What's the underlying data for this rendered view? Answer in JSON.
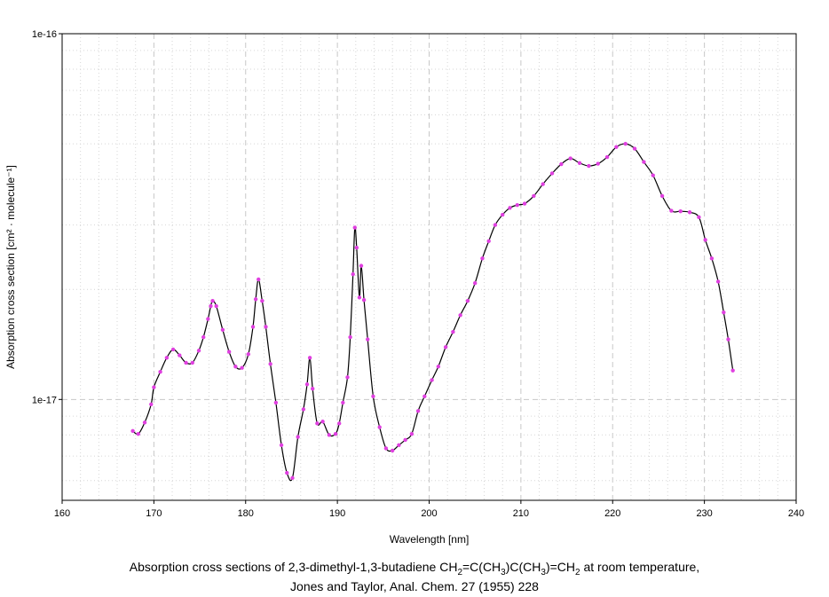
{
  "chart_data": {
    "type": "line",
    "xlabel": "Wavelength [nm]",
    "ylabel": "Absorption cross section [cm² · molecule⁻¹]",
    "xlim": [
      160,
      240
    ],
    "ylim": [
      5.3e-18,
      1e-16
    ],
    "yscale": "log",
    "grid": true,
    "xticks": [
      "160",
      "170",
      "180",
      "190",
      "200",
      "210",
      "220",
      "230",
      "240"
    ],
    "yticks": [
      "1e-16",
      "1e-17"
    ],
    "marker_color": "#e040e0",
    "line_color": "#000000",
    "series": [
      {
        "x": [
          167.7,
          168.3,
          169.0,
          169.7,
          170.0,
          170.7,
          171.4,
          172.1,
          172.8,
          173.5,
          174.2,
          174.9,
          175.4,
          175.9,
          176.2,
          176.4,
          176.8,
          177.5,
          178.2,
          178.9,
          179.6,
          180.3,
          180.8,
          181.1,
          181.4,
          181.8,
          182.2,
          182.7,
          183.3,
          183.9,
          184.5,
          185.1,
          185.7,
          186.3,
          186.7,
          187.0,
          187.3,
          187.8,
          188.4,
          189.1,
          189.8,
          190.2,
          190.6,
          191.1,
          191.4,
          191.7,
          191.9,
          192.1,
          192.4,
          192.6,
          192.9,
          193.3,
          193.9,
          194.6,
          195.3,
          196.0,
          196.7,
          197.4,
          198.1,
          198.8,
          199.5,
          200.3,
          201.0,
          201.8,
          202.6,
          203.4,
          204.2,
          205.0,
          205.8,
          206.5,
          207.2,
          208.0,
          208.8,
          209.6,
          210.4,
          211.4,
          212.4,
          213.4,
          214.4,
          215.4,
          216.4,
          217.4,
          218.4,
          219.4,
          220.4,
          221.4,
          222.4,
          223.4,
          224.4,
          225.4,
          226.4,
          227.4,
          228.4,
          229.4,
          230.1,
          230.8,
          231.5,
          232.1,
          232.6,
          233.1
        ],
        "y": [
          8.2e-18,
          8.05e-18,
          8.65e-18,
          9.7e-18,
          1.08e-17,
          1.19e-17,
          1.3e-17,
          1.37e-17,
          1.32e-17,
          1.26e-17,
          1.26e-17,
          1.36e-17,
          1.48e-17,
          1.66e-17,
          1.8e-17,
          1.86e-17,
          1.8e-17,
          1.55e-17,
          1.35e-17,
          1.23e-17,
          1.22e-17,
          1.33e-17,
          1.58e-17,
          1.88e-17,
          2.13e-17,
          1.86e-17,
          1.58e-17,
          1.25e-17,
          9.8e-18,
          7.5e-18,
          6.3e-18,
          6.1e-18,
          7.9e-18,
          9.4e-18,
          1.1e-17,
          1.3e-17,
          1.07e-17,
          8.6e-18,
          8.7e-18,
          8e-18,
          8.05e-18,
          8.6e-18,
          9.8e-18,
          1.15e-17,
          1.48e-17,
          2.2e-17,
          2.95e-17,
          2.6e-17,
          1.9e-17,
          2.32e-17,
          1.87e-17,
          1.46e-17,
          1.02e-17,
          8.4e-18,
          7.35e-18,
          7.25e-18,
          7.5e-18,
          7.75e-18,
          8.05e-18,
          9.3e-18,
          1.02e-17,
          1.13e-17,
          1.23e-17,
          1.39e-17,
          1.53e-17,
          1.7e-17,
          1.86e-17,
          2.08e-17,
          2.43e-17,
          2.71e-17,
          3e-17,
          3.2e-17,
          3.34e-17,
          3.4e-17,
          3.43e-17,
          3.6e-17,
          3.88e-17,
          4.15e-17,
          4.4e-17,
          4.56e-17,
          4.43e-17,
          4.35e-17,
          4.41e-17,
          4.6e-17,
          4.9e-17,
          5e-17,
          4.85e-17,
          4.46e-17,
          4.1e-17,
          3.6e-17,
          3.28e-17,
          3.27e-17,
          3.25e-17,
          3.15e-17,
          2.73e-17,
          2.43e-17,
          2.1e-17,
          1.73e-17,
          1.46e-17,
          1.2e-17
        ]
      }
    ]
  },
  "caption": {
    "line1_pre": "Absorption cross sections of 2,3-dimethyl-1,3-butadiene CH",
    "line1_sub1": "2",
    "line1_mid1": "=C(CH",
    "line1_sub2": "3",
    "line1_mid2": ")C(CH",
    "line1_sub3": "3",
    "line1_mid3": ")=CH",
    "line1_sub4": "2",
    "line1_post": " at room temperature,",
    "line2": "Jones and Taylor, Anal. Chem. 27 (1955) 228"
  }
}
